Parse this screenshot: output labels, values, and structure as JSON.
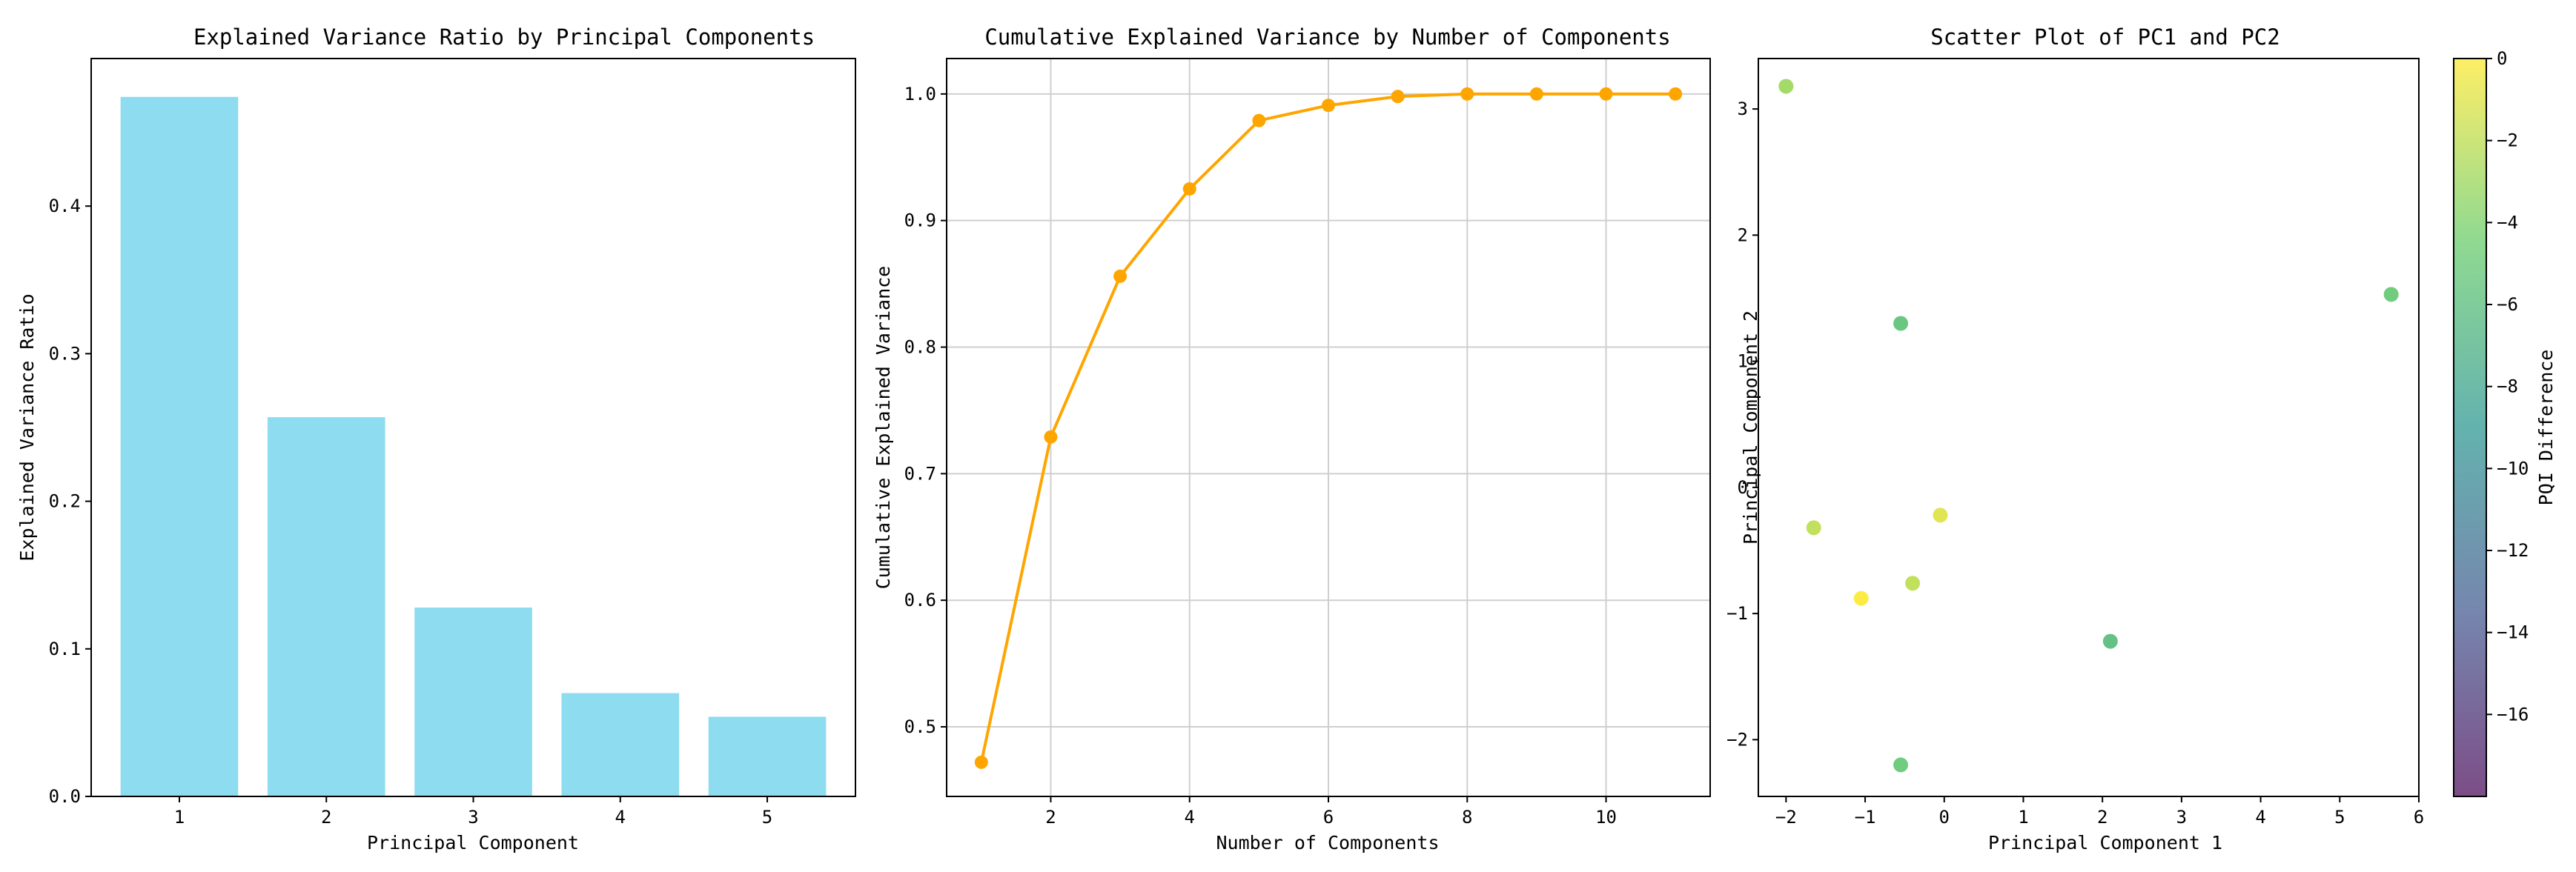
{
  "chart_data": [
    {
      "type": "bar",
      "title": "Explained Variance Ratio by Principal Components",
      "xlabel": "Principal Component",
      "ylabel": "Explained Variance Ratio",
      "categories": [
        "1",
        "2",
        "3",
        "4",
        "5"
      ],
      "values": [
        0.474,
        0.257,
        0.128,
        0.07,
        0.054
      ],
      "ylim": [
        0,
        0.5
      ],
      "yticks": [
        0.0,
        0.1,
        0.2,
        0.3,
        0.4
      ],
      "ytick_labels": [
        "0.0",
        "0.1",
        "0.2",
        "0.3",
        "0.4"
      ],
      "grid": false,
      "bar_color": "#8ddcef"
    },
    {
      "type": "line",
      "title": "Cumulative Explained Variance by Number of Components",
      "xlabel": "Number of Components",
      "ylabel": "Cumulative Explained Variance",
      "x": [
        1,
        2,
        3,
        4,
        5,
        6,
        7,
        8,
        9,
        10,
        11
      ],
      "y": [
        0.472,
        0.729,
        0.856,
        0.925,
        0.979,
        0.991,
        0.998,
        1.0,
        1.0,
        1.0,
        1.0
      ],
      "xlim": [
        0.5,
        11.5
      ],
      "ylim": [
        0.445,
        1.028
      ],
      "xticks": [
        2,
        4,
        6,
        8,
        10
      ],
      "xtick_labels": [
        "2",
        "4",
        "6",
        "8",
        "10"
      ],
      "yticks": [
        0.5,
        0.6,
        0.7,
        0.8,
        0.9,
        1.0
      ],
      "ytick_labels": [
        "0.5",
        "0.6",
        "0.7",
        "0.8",
        "0.9",
        "1.0"
      ],
      "grid": true,
      "line_color": "#ffa500"
    },
    {
      "type": "scatter",
      "title": "Scatter Plot of PC1 and PC2",
      "xlabel": "Principal Component 1",
      "ylabel": "Principal Component 2",
      "points": [
        {
          "x": -2.0,
          "y": 3.18,
          "value": -3
        },
        {
          "x": 5.65,
          "y": 1.53,
          "value": -5
        },
        {
          "x": -0.55,
          "y": 1.3,
          "value": -5.5
        },
        {
          "x": -1.65,
          "y": -0.32,
          "value": -2
        },
        {
          "x": -0.05,
          "y": -0.22,
          "value": -1
        },
        {
          "x": -1.05,
          "y": -0.88,
          "value": 0
        },
        {
          "x": -0.4,
          "y": -0.76,
          "value": -2
        },
        {
          "x": 2.1,
          "y": -1.22,
          "value": -6
        },
        {
          "x": -0.55,
          "y": -2.2,
          "value": -5
        }
      ],
      "xlim": [
        -2.35,
        6.0
      ],
      "ylim": [
        -2.45,
        3.4
      ],
      "xticks": [
        -2,
        -1,
        0,
        1,
        2,
        3,
        4,
        5,
        6
      ],
      "xtick_labels": [
        "−2",
        "−1",
        "0",
        "1",
        "2",
        "3",
        "4",
        "5",
        "6"
      ],
      "yticks": [
        -2,
        -1,
        0,
        1,
        2,
        3
      ],
      "ytick_labels": [
        "−2",
        "−1",
        "0",
        "1",
        "2",
        "3"
      ],
      "grid": false,
      "colormap": "viridis",
      "colorbar": {
        "label": "PQI Difference",
        "min": -18,
        "max": 0,
        "ticks": [
          0,
          -2,
          -4,
          -6,
          -8,
          -10,
          -12,
          -14,
          -16
        ],
        "tick_labels": [
          "0",
          "−2",
          "−4",
          "−6",
          "−8",
          "−10",
          "−12",
          "−14",
          "−16"
        ]
      }
    }
  ]
}
